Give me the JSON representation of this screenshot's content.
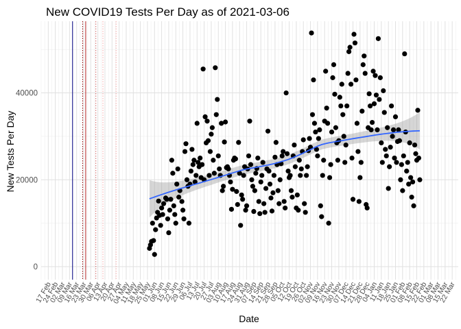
{
  "chart_data": {
    "type": "scatter",
    "title": "New COVID19 Tests Per Day as of 2021-03-06",
    "xlabel": "Date",
    "ylabel": "New Tests Per Day",
    "xlim": [
      "2020-02-10",
      "2021-03-28"
    ],
    "ylim": [
      -3000,
      56500
    ],
    "yticks": [
      0,
      20000,
      40000
    ],
    "ytick_labels": [
      "0",
      "20000",
      "40000"
    ],
    "xticks": [
      {
        "date": "2020-02-17",
        "label": "17 Feb"
      },
      {
        "date": "2020-02-24",
        "label": "24 Feb"
      },
      {
        "date": "2020-03-02",
        "label": "02 Mar"
      },
      {
        "date": "2020-03-09",
        "label": "09 Mar"
      },
      {
        "date": "2020-03-16",
        "label": "16 Mar"
      },
      {
        "date": "2020-03-23",
        "label": "23 Mar"
      },
      {
        "date": "2020-03-30",
        "label": "30 Mar"
      },
      {
        "date": "2020-04-06",
        "label": "06 Apr"
      },
      {
        "date": "2020-04-13",
        "label": "13 Apr"
      },
      {
        "date": "2020-04-20",
        "label": "20 Apr"
      },
      {
        "date": "2020-04-27",
        "label": "27 Apr"
      },
      {
        "date": "2020-05-04",
        "label": "04 May"
      },
      {
        "date": "2020-05-11",
        "label": "11 May"
      },
      {
        "date": "2020-05-18",
        "label": "18 May"
      },
      {
        "date": "2020-05-25",
        "label": "25 May"
      },
      {
        "date": "2020-06-01",
        "label": "01 Jun"
      },
      {
        "date": "2020-06-08",
        "label": "08 Jun"
      },
      {
        "date": "2020-06-15",
        "label": "15 Jun"
      },
      {
        "date": "2020-06-22",
        "label": "22 Jun"
      },
      {
        "date": "2020-06-29",
        "label": "29 Jun"
      },
      {
        "date": "2020-07-06",
        "label": "06 Jul"
      },
      {
        "date": "2020-07-13",
        "label": "13 Jul"
      },
      {
        "date": "2020-07-20",
        "label": "20 Jul"
      },
      {
        "date": "2020-07-27",
        "label": "27 Jul"
      },
      {
        "date": "2020-08-03",
        "label": "03 Aug"
      },
      {
        "date": "2020-08-10",
        "label": "10 Aug"
      },
      {
        "date": "2020-08-17",
        "label": "17 Aug"
      },
      {
        "date": "2020-08-24",
        "label": "24 Aug"
      },
      {
        "date": "2020-08-31",
        "label": "31 Aug"
      },
      {
        "date": "2020-09-07",
        "label": "07 Sep"
      },
      {
        "date": "2020-09-14",
        "label": "14 Sep"
      },
      {
        "date": "2020-09-21",
        "label": "21 Sep"
      },
      {
        "date": "2020-09-28",
        "label": "28 Sep"
      },
      {
        "date": "2020-10-05",
        "label": "05 Oct"
      },
      {
        "date": "2020-10-12",
        "label": "12 Oct"
      },
      {
        "date": "2020-10-19",
        "label": "19 Oct"
      },
      {
        "date": "2020-10-26",
        "label": "26 Oct"
      },
      {
        "date": "2020-11-02",
        "label": "02 Nov"
      },
      {
        "date": "2020-11-09",
        "label": "09 Nov"
      },
      {
        "date": "2020-11-16",
        "label": "16 Nov"
      },
      {
        "date": "2020-11-23",
        "label": "23 Nov"
      },
      {
        "date": "2020-11-30",
        "label": "30 Nov"
      },
      {
        "date": "2020-12-07",
        "label": "07 Dec"
      },
      {
        "date": "2020-12-14",
        "label": "14 Dec"
      },
      {
        "date": "2020-12-21",
        "label": "21 Dec"
      },
      {
        "date": "2020-12-28",
        "label": "28 Dec"
      },
      {
        "date": "2021-01-04",
        "label": "04 Jan"
      },
      {
        "date": "2021-01-11",
        "label": "11 Jan"
      },
      {
        "date": "2021-01-18",
        "label": "18 Jan"
      },
      {
        "date": "2021-01-25",
        "label": "25 Jan"
      },
      {
        "date": "2021-02-01",
        "label": "01 Feb"
      },
      {
        "date": "2021-02-08",
        "label": "08 Feb"
      },
      {
        "date": "2021-02-15",
        "label": "15 Feb"
      },
      {
        "date": "2021-02-22",
        "label": "22 Feb"
      },
      {
        "date": "2021-03-01",
        "label": "01 Mar"
      },
      {
        "date": "2021-03-08",
        "label": "08 Mar"
      },
      {
        "date": "2021-03-15",
        "label": "15 Mar"
      },
      {
        "date": "2021-03-22",
        "label": "22 Mar"
      }
    ],
    "vlines": [
      {
        "date": "2020-03-12",
        "color": "#000080",
        "style": "solid"
      },
      {
        "date": "2020-03-22",
        "color": "#8b0000",
        "style": "dotted"
      },
      {
        "date": "2020-03-25",
        "color": "#b22222",
        "style": "solid"
      },
      {
        "date": "2020-04-04",
        "color": "#cd5c5c",
        "style": "dotted"
      },
      {
        "date": "2020-04-11",
        "color": "#f4a6a6",
        "style": "dotted"
      },
      {
        "date": "2020-04-24",
        "color": "#f4a6a6",
        "style": "dotted"
      }
    ],
    "point_color": "#000000",
    "smooth_color": "#3366ff",
    "band_color": "#999999",
    "points": [
      [
        "2020-05-27",
        4200
      ],
      [
        "2020-05-28",
        5000
      ],
      [
        "2020-05-29",
        5800
      ],
      [
        "2020-05-30",
        10000
      ],
      [
        "2020-05-31",
        6000
      ],
      [
        "2020-06-01",
        2800
      ],
      [
        "2020-06-02",
        8500
      ],
      [
        "2020-06-03",
        11200
      ],
      [
        "2020-06-04",
        12500
      ],
      [
        "2020-06-05",
        15100
      ],
      [
        "2020-06-06",
        11800
      ],
      [
        "2020-06-07",
        9500
      ],
      [
        "2020-06-08",
        13500
      ],
      [
        "2020-06-09",
        12000
      ],
      [
        "2020-06-10",
        14500
      ],
      [
        "2020-06-12",
        15800
      ],
      [
        "2020-06-13",
        15500
      ],
      [
        "2020-06-14",
        11000
      ],
      [
        "2020-06-15",
        7800
      ],
      [
        "2020-06-16",
        13000
      ],
      [
        "2020-06-17",
        15500
      ],
      [
        "2020-06-18",
        24500
      ],
      [
        "2020-06-19",
        21500
      ],
      [
        "2020-06-20",
        14000
      ],
      [
        "2020-06-21",
        12000
      ],
      [
        "2020-06-22",
        10000
      ],
      [
        "2020-06-23",
        19000
      ],
      [
        "2020-06-24",
        22500
      ],
      [
        "2020-06-25",
        16000
      ],
      [
        "2020-06-26",
        17500
      ],
      [
        "2020-06-28",
        15000
      ],
      [
        "2020-06-29",
        13000
      ],
      [
        "2020-06-30",
        11000
      ],
      [
        "2020-07-01",
        26500
      ],
      [
        "2020-07-02",
        28300
      ],
      [
        "2020-07-03",
        20000
      ],
      [
        "2020-07-04",
        18500
      ],
      [
        "2020-07-05",
        10000
      ],
      [
        "2020-07-06",
        19000
      ],
      [
        "2020-07-07",
        22000
      ],
      [
        "2020-07-08",
        27000
      ],
      [
        "2020-07-09",
        23500
      ],
      [
        "2020-07-10",
        24500
      ],
      [
        "2020-07-11",
        19500
      ],
      [
        "2020-07-12",
        21000
      ],
      [
        "2020-07-13",
        33000
      ],
      [
        "2020-07-14",
        24000
      ],
      [
        "2020-07-15",
        23000
      ],
      [
        "2020-07-16",
        25000
      ],
      [
        "2020-07-17",
        20500
      ],
      [
        "2020-07-18",
        23500
      ],
      [
        "2020-07-19",
        45500
      ],
      [
        "2020-07-20",
        20000
      ],
      [
        "2020-07-21",
        34500
      ],
      [
        "2020-07-22",
        28500
      ],
      [
        "2020-07-23",
        33500
      ],
      [
        "2020-07-24",
        29000
      ],
      [
        "2020-07-25",
        21000
      ],
      [
        "2020-07-26",
        26500
      ],
      [
        "2020-07-27",
        30500
      ],
      [
        "2020-07-28",
        32000
      ],
      [
        "2020-07-29",
        24500
      ],
      [
        "2020-07-30",
        21500
      ],
      [
        "2020-07-31",
        45800
      ],
      [
        "2020-08-01",
        35000
      ],
      [
        "2020-08-02",
        38500
      ],
      [
        "2020-08-03",
        25500
      ],
      [
        "2020-08-04",
        22500
      ],
      [
        "2020-08-05",
        21000
      ],
      [
        "2020-08-06",
        33000
      ],
      [
        "2020-08-07",
        17500
      ],
      [
        "2020-08-08",
        18500
      ],
      [
        "2020-08-09",
        28700
      ],
      [
        "2020-08-10",
        33300
      ],
      [
        "2020-08-11",
        22800
      ],
      [
        "2020-08-12",
        23000
      ],
      [
        "2020-08-13",
        22500
      ],
      [
        "2020-08-14",
        21000
      ],
      [
        "2020-08-15",
        19500
      ],
      [
        "2020-08-16",
        13200
      ],
      [
        "2020-08-17",
        17800
      ],
      [
        "2020-08-18",
        24500
      ],
      [
        "2020-08-19",
        25000
      ],
      [
        "2020-08-20",
        24800
      ],
      [
        "2020-08-21",
        17300
      ],
      [
        "2020-08-22",
        14300
      ],
      [
        "2020-08-23",
        28600
      ],
      [
        "2020-08-24",
        21500
      ],
      [
        "2020-08-25",
        9500
      ],
      [
        "2020-08-26",
        16500
      ],
      [
        "2020-08-27",
        15500
      ],
      [
        "2020-08-28",
        21000
      ],
      [
        "2020-08-29",
        23000
      ],
      [
        "2020-08-30",
        13000
      ],
      [
        "2020-08-31",
        14000
      ],
      [
        "2020-09-01",
        22500
      ],
      [
        "2020-09-02",
        25500
      ],
      [
        "2020-09-03",
        33500
      ],
      [
        "2020-09-04",
        23500
      ],
      [
        "2020-09-05",
        20000
      ],
      [
        "2020-09-06",
        18500
      ],
      [
        "2020-09-07",
        12700
      ],
      [
        "2020-09-08",
        17500
      ],
      [
        "2020-09-09",
        21500
      ],
      [
        "2020-09-10",
        22600
      ],
      [
        "2020-09-11",
        25000
      ],
      [
        "2020-09-12",
        15000
      ],
      [
        "2020-09-13",
        12200
      ],
      [
        "2020-09-14",
        19500
      ],
      [
        "2020-09-15",
        21000
      ],
      [
        "2020-09-16",
        24000
      ],
      [
        "2020-09-17",
        14500
      ],
      [
        "2020-09-18",
        12500
      ],
      [
        "2020-09-19",
        18000
      ],
      [
        "2020-09-20",
        22500
      ],
      [
        "2020-09-21",
        31200
      ],
      [
        "2020-09-22",
        22000
      ],
      [
        "2020-09-23",
        19000
      ],
      [
        "2020-09-24",
        15800
      ],
      [
        "2020-09-25",
        12800
      ],
      [
        "2020-09-26",
        17000
      ],
      [
        "2020-09-27",
        21000
      ],
      [
        "2020-09-28",
        25200
      ],
      [
        "2020-09-29",
        28600
      ],
      [
        "2020-09-30",
        23500
      ],
      [
        "2020-10-01",
        17500
      ],
      [
        "2020-10-02",
        14500
      ],
      [
        "2020-10-03",
        20000
      ],
      [
        "2020-10-04",
        23700
      ],
      [
        "2020-10-05",
        25500
      ],
      [
        "2020-10-06",
        26500
      ],
      [
        "2020-10-07",
        15000
      ],
      [
        "2020-10-08",
        13500
      ],
      [
        "2020-10-09",
        40000
      ],
      [
        "2020-10-10",
        26000
      ],
      [
        "2020-10-11",
        22000
      ],
      [
        "2020-10-12",
        20500
      ],
      [
        "2020-10-13",
        21000
      ],
      [
        "2020-10-14",
        17500
      ],
      [
        "2020-10-15",
        16000
      ],
      [
        "2020-10-16",
        25500
      ],
      [
        "2020-10-17",
        28000
      ],
      [
        "2020-10-18",
        23000
      ],
      [
        "2020-10-19",
        13500
      ],
      [
        "2020-10-20",
        16500
      ],
      [
        "2020-10-21",
        13000
      ],
      [
        "2020-10-22",
        24500
      ],
      [
        "2020-10-23",
        21000
      ],
      [
        "2020-10-24",
        22500
      ],
      [
        "2020-10-25",
        26500
      ],
      [
        "2020-10-26",
        29200
      ],
      [
        "2020-10-27",
        14500
      ],
      [
        "2020-10-28",
        12500
      ],
      [
        "2020-10-29",
        21000
      ],
      [
        "2020-10-30",
        23000
      ],
      [
        "2020-10-31",
        26700
      ],
      [
        "2020-11-01",
        29500
      ],
      [
        "2020-11-02",
        27500
      ],
      [
        "2020-11-03",
        53800
      ],
      [
        "2020-11-04",
        35000
      ],
      [
        "2020-11-05",
        43000
      ],
      [
        "2020-11-06",
        33000
      ],
      [
        "2020-11-07",
        31000
      ],
      [
        "2020-11-08",
        27000
      ],
      [
        "2020-11-09",
        25500
      ],
      [
        "2020-11-10",
        29500
      ],
      [
        "2020-11-11",
        31500
      ],
      [
        "2020-11-12",
        14000
      ],
      [
        "2020-11-13",
        11500
      ],
      [
        "2020-11-14",
        21000
      ],
      [
        "2020-11-15",
        24500
      ],
      [
        "2020-11-16",
        33500
      ],
      [
        "2020-11-17",
        45000
      ],
      [
        "2020-11-18",
        36500
      ],
      [
        "2020-11-19",
        33000
      ],
      [
        "2020-11-20",
        10000
      ],
      [
        "2020-11-21",
        20500
      ],
      [
        "2020-11-22",
        23500
      ],
      [
        "2020-11-23",
        31000
      ],
      [
        "2020-11-24",
        43500
      ],
      [
        "2020-11-25",
        46500
      ],
      [
        "2020-11-26",
        39700
      ],
      [
        "2020-11-27",
        32000
      ],
      [
        "2020-11-28",
        28500
      ],
      [
        "2020-11-29",
        24500
      ],
      [
        "2020-11-30",
        29000
      ],
      [
        "2020-12-01",
        39000
      ],
      [
        "2020-12-02",
        37000
      ],
      [
        "2020-12-03",
        42000
      ],
      [
        "2020-12-04",
        35000
      ],
      [
        "2020-12-05",
        30000
      ],
      [
        "2020-12-06",
        24000
      ],
      [
        "2020-12-07",
        28000
      ],
      [
        "2020-12-08",
        37000
      ],
      [
        "2020-12-09",
        44500
      ],
      [
        "2020-12-10",
        49500
      ],
      [
        "2020-12-11",
        50500
      ],
      [
        "2020-12-12",
        42000
      ],
      [
        "2020-12-13",
        25000
      ],
      [
        "2020-12-14",
        15500
      ],
      [
        "2020-12-15",
        53500
      ],
      [
        "2020-12-16",
        51500
      ],
      [
        "2020-12-17",
        43000
      ],
      [
        "2020-12-18",
        33000
      ],
      [
        "2020-12-19",
        26500
      ],
      [
        "2020-12-20",
        15000
      ],
      [
        "2020-12-21",
        20500
      ],
      [
        "2020-12-22",
        24000
      ],
      [
        "2020-12-23",
        35800
      ],
      [
        "2020-12-24",
        46500
      ],
      [
        "2020-12-25",
        48500
      ],
      [
        "2020-12-26",
        44500
      ],
      [
        "2020-12-27",
        14300
      ],
      [
        "2020-12-28",
        13500
      ],
      [
        "2020-12-29",
        32000
      ],
      [
        "2020-12-30",
        39800
      ],
      [
        "2020-12-31",
        37000
      ],
      [
        "2021-01-01",
        31500
      ],
      [
        "2021-01-02",
        33200
      ],
      [
        "2021-01-03",
        45000
      ],
      [
        "2021-01-04",
        37500
      ],
      [
        "2021-01-05",
        44000
      ],
      [
        "2021-01-06",
        39500
      ],
      [
        "2021-01-07",
        31500
      ],
      [
        "2021-01-08",
        52500
      ],
      [
        "2021-01-09",
        38500
      ],
      [
        "2021-01-10",
        43500
      ],
      [
        "2021-01-11",
        28500
      ],
      [
        "2021-01-12",
        24000
      ],
      [
        "2021-01-13",
        40500
      ],
      [
        "2021-01-14",
        35500
      ],
      [
        "2021-01-15",
        27000
      ],
      [
        "2021-01-16",
        25500
      ],
      [
        "2021-01-17",
        32000
      ],
      [
        "2021-01-18",
        18000
      ],
      [
        "2021-01-19",
        23000
      ],
      [
        "2021-01-20",
        27500
      ],
      [
        "2021-01-21",
        37000
      ],
      [
        "2021-01-22",
        30000
      ],
      [
        "2021-01-23",
        31500
      ],
      [
        "2021-01-24",
        25000
      ],
      [
        "2021-01-25",
        34500
      ],
      [
        "2021-01-26",
        24000
      ],
      [
        "2021-01-27",
        28800
      ],
      [
        "2021-01-28",
        31500
      ],
      [
        "2021-01-29",
        29000
      ],
      [
        "2021-01-30",
        20000
      ],
      [
        "2021-01-31",
        23500
      ],
      [
        "2021-02-01",
        17500
      ],
      [
        "2021-02-02",
        25500
      ],
      [
        "2021-02-03",
        49000
      ],
      [
        "2021-02-04",
        31000
      ],
      [
        "2021-02-05",
        22000
      ],
      [
        "2021-02-06",
        24000
      ],
      [
        "2021-02-07",
        19000
      ],
      [
        "2021-02-08",
        28500
      ],
      [
        "2021-02-09",
        20500
      ],
      [
        "2021-02-10",
        16000
      ],
      [
        "2021-02-11",
        19500
      ],
      [
        "2021-02-12",
        14000
      ],
      [
        "2021-02-13",
        28000
      ],
      [
        "2021-02-14",
        26000
      ],
      [
        "2021-02-15",
        24500
      ],
      [
        "2021-02-16",
        36000
      ],
      [
        "2021-02-17",
        25000
      ],
      [
        "2021-02-18",
        20000
      ]
    ]
  }
}
